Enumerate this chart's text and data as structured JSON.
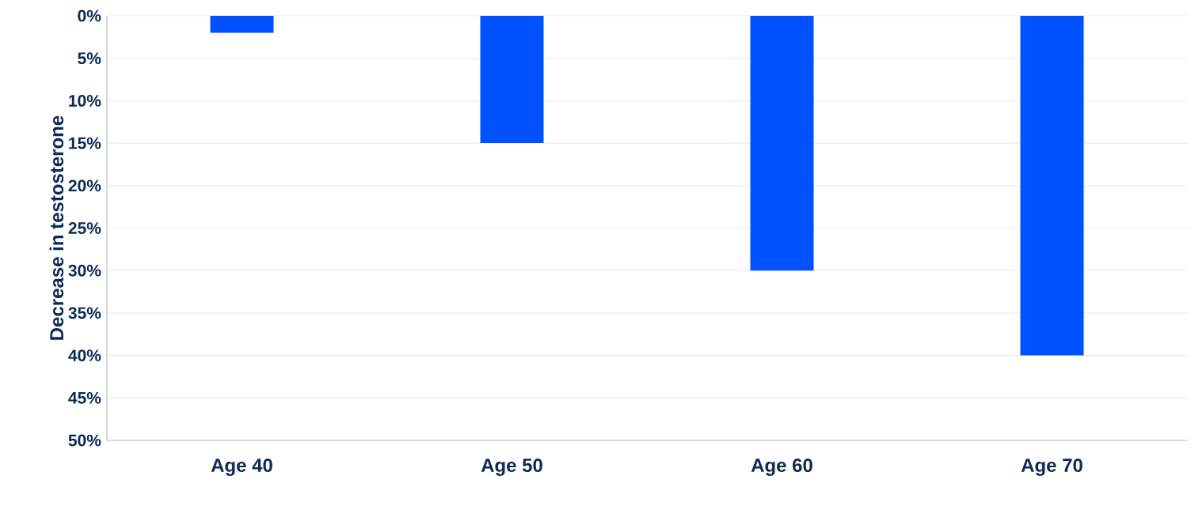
{
  "chart_data": {
    "type": "bar",
    "ylabel": "Decrease in testosterone",
    "categories": [
      "Age 40",
      "Age 50",
      "Age 60",
      "Age 70"
    ],
    "values": [
      2,
      15,
      30,
      40
    ],
    "color": "#0052ff",
    "ylim": [
      50,
      0
    ],
    "yticks": [
      {
        "value": 0,
        "label": "0%"
      },
      {
        "value": 5,
        "label": "5%"
      },
      {
        "value": 10,
        "label": "10%"
      },
      {
        "value": 15,
        "label": "15%"
      },
      {
        "value": 20,
        "label": "20%"
      },
      {
        "value": 25,
        "label": "25%"
      },
      {
        "value": 30,
        "label": "30%"
      },
      {
        "value": 35,
        "label": "35%"
      },
      {
        "value": 40,
        "label": "40%"
      },
      {
        "value": 45,
        "label": "45%"
      },
      {
        "value": 50,
        "label": "50%"
      }
    ],
    "grid": "y"
  }
}
